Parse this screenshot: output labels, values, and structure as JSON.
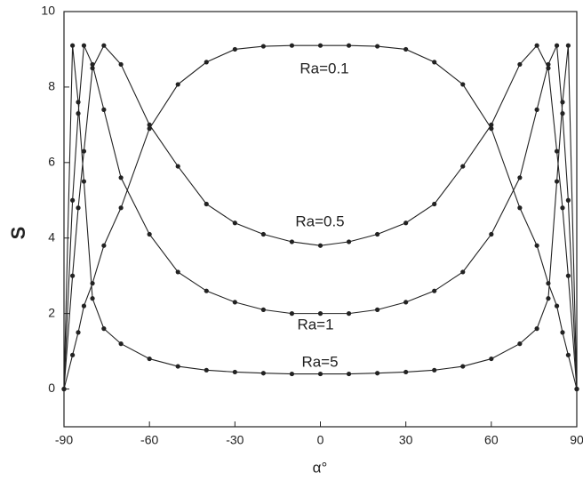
{
  "chart_data": {
    "type": "line",
    "x_label": "α°",
    "y_label": "S",
    "x": [
      -90,
      -87,
      -85,
      -83,
      -80,
      -76,
      -70,
      -60,
      -50,
      -40,
      -30,
      -20,
      -10,
      0,
      10,
      20,
      30,
      40,
      50,
      60,
      70,
      76,
      80,
      83,
      85,
      87,
      90
    ],
    "series": [
      {
        "name": "Ra=0.1",
        "color": "#222222",
        "values": [
          0,
          0.9,
          1.5,
          2.2,
          2.8,
          3.8,
          4.8,
          6.9,
          8.07,
          8.66,
          9.0,
          9.08,
          9.1,
          9.1,
          9.1,
          9.08,
          9.0,
          8.66,
          8.07,
          6.9,
          4.8,
          3.8,
          2.8,
          2.2,
          1.5,
          0.9,
          0
        ]
      },
      {
        "name": "Ra=0.5",
        "color": "#222222",
        "values": [
          0,
          3,
          4.8,
          6.3,
          8.5,
          9.1,
          8.6,
          7.0,
          5.9,
          4.9,
          4.4,
          4.1,
          3.9,
          3.8,
          3.9,
          4.1,
          4.4,
          4.9,
          5.9,
          7.0,
          8.6,
          9.1,
          8.5,
          6.3,
          4.8,
          3,
          0
        ]
      },
      {
        "name": "Ra=1",
        "color": "#222222",
        "values": [
          0,
          5,
          7.3,
          9.1,
          8.6,
          7.4,
          5.6,
          4.1,
          3.1,
          2.6,
          2.3,
          2.1,
          2.0,
          2.0,
          2.0,
          2.1,
          2.3,
          2.6,
          3.1,
          4.1,
          5.6,
          7.4,
          8.6,
          9.1,
          7.3,
          5,
          0
        ]
      },
      {
        "name": "Ra=5",
        "color": "#222222",
        "values": [
          0,
          9.1,
          7.6,
          5.5,
          2.4,
          1.6,
          1.2,
          0.8,
          0.6,
          0.5,
          0.45,
          0.42,
          0.4,
          0.4,
          0.4,
          0.42,
          0.45,
          0.5,
          0.6,
          0.8,
          1.2,
          1.6,
          2.4,
          5.5,
          7.6,
          9.1,
          0
        ]
      }
    ],
    "xlim": [
      -90,
      90
    ],
    "ylim": [
      -1,
      10
    ],
    "xticks": [
      -90,
      -60,
      -30,
      0,
      30,
      60,
      90
    ],
    "yticks": [
      0,
      2,
      4,
      6,
      8,
      10
    ]
  }
}
